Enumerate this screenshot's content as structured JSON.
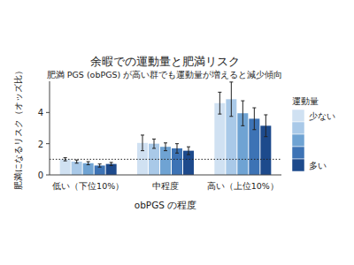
{
  "chart_data": {
    "type": "bar",
    "title": "余暇での運動量と肥満リスク",
    "subtitle": "肥満 PGS (obPGS) が高い群でも運動量が増えると減少傾向",
    "x_label": "obPGS の程度",
    "y_label": "肥満になるリスク（オッズ比）",
    "legend_title": "運動量",
    "categories": [
      "低い（下位10%）",
      "中程度",
      "高い（上位10%）"
    ],
    "series": [
      {
        "name": "少ない",
        "color": "#d0e1f2",
        "values": [
          1.0,
          2.05,
          4.6
        ],
        "errors": [
          0.1,
          0.5,
          0.7
        ]
      },
      {
        "name": null,
        "color": "#a9c9e8",
        "values": [
          0.85,
          2.0,
          4.85
        ],
        "errors": [
          0.1,
          0.3,
          1.1
        ]
      },
      {
        "name": null,
        "color": "#6fa3d3",
        "values": [
          0.75,
          1.8,
          3.95
        ],
        "errors": [
          0.1,
          0.25,
          0.8
        ]
      },
      {
        "name": null,
        "color": "#3d73b5",
        "values": [
          0.6,
          1.7,
          3.6
        ],
        "errors": [
          0.1,
          0.3,
          0.7
        ]
      },
      {
        "name": "多い",
        "color": "#1d4a8c",
        "values": [
          0.7,
          1.55,
          3.15
        ],
        "errors": [
          0.1,
          0.25,
          0.7
        ]
      }
    ],
    "reference_line": 1,
    "ylim": [
      0,
      6
    ],
    "yticks": [
      0,
      2,
      4
    ],
    "grid": false,
    "legend": "right"
  }
}
